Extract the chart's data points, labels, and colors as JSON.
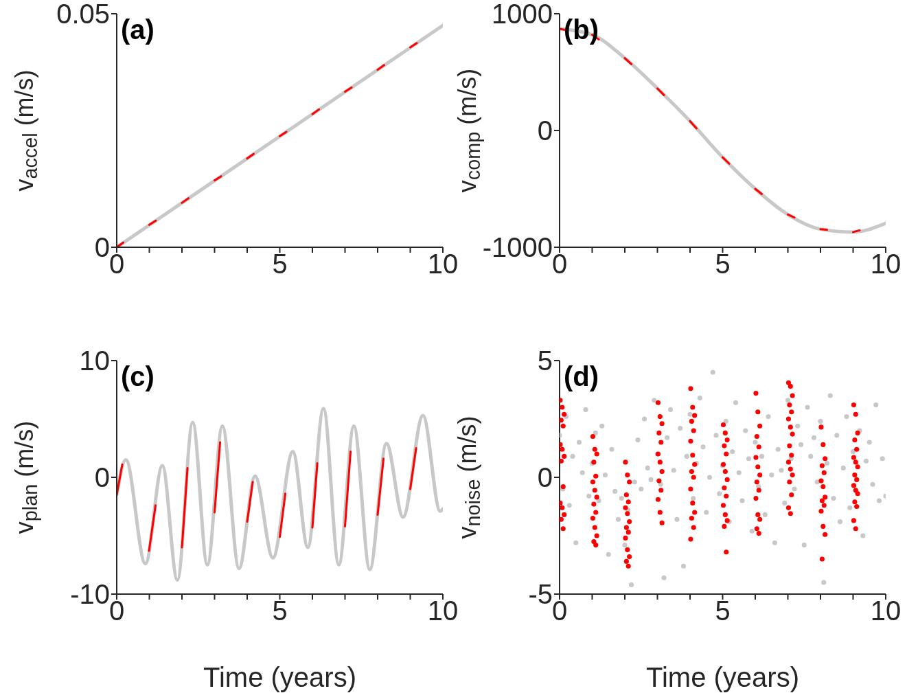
{
  "chart_data": [
    {
      "type": "line",
      "ylabel": "v$_{accel}$ (m/s)",
      "annotations": [
        "(a)"
      ],
      "xlim": [
        0,
        10
      ],
      "xticks": [
        0,
        {
          "value": 1,
          "label": null
        },
        {
          "value": 2,
          "label": null
        },
        {
          "value": 3,
          "label": null
        },
        {
          "value": 4,
          "label": null
        },
        5,
        {
          "value": 6,
          "label": null
        },
        {
          "value": 7,
          "label": null
        },
        {
          "value": 8,
          "label": null
        },
        {
          "value": 9,
          "label": null
        },
        10
      ],
      "ylim": [
        0,
        0.05
      ],
      "yticks": [
        0,
        0.05
      ],
      "series": [
        {
          "color": "#c8c8c8",
          "x": [
            0,
            10
          ],
          "values": [
            0,
            0.0475
          ]
        },
        {
          "color": "#ff0000",
          "x": [
            0,
            0.2,
            0.6,
            1,
            1.2,
            1.6,
            2,
            2.2,
            2.6,
            3,
            3.2,
            3.6,
            4,
            4.2,
            4.6,
            5,
            5.2,
            5.6,
            6,
            6.2,
            6.6,
            7,
            7.2,
            7.6,
            8,
            8.2,
            8.6,
            9,
            9.2
          ],
          "values": [
            0,
            0.001,
            null,
            0.0048,
            0.0057,
            null,
            0.0095,
            0.0105,
            null,
            0.0143,
            0.0152,
            null,
            0.019,
            0.02,
            null,
            0.0238,
            0.0247,
            null,
            0.0285,
            0.0295,
            null,
            0.0333,
            0.0342,
            null,
            0.038,
            0.039,
            null,
            0.0428,
            0.0437
          ]
        }
      ]
    },
    {
      "type": "line",
      "ylabel": "v$_{comp}$ (m/s)",
      "annotations": [
        "(b)"
      ],
      "xlim": [
        0,
        10
      ],
      "xticks": [
        0,
        {
          "value": 1,
          "label": null
        },
        {
          "value": 2,
          "label": null
        },
        {
          "value": 3,
          "label": null
        },
        {
          "value": 4,
          "label": null
        },
        5,
        {
          "value": 6,
          "label": null
        },
        {
          "value": 7,
          "label": null
        },
        {
          "value": 8,
          "label": null
        },
        {
          "value": 9,
          "label": null
        },
        10
      ],
      "ylim": [
        -1000,
        1000
      ],
      "yticks": [
        -1000,
        0,
        1000
      ],
      "series": [
        {
          "color": "#c8c8c8",
          "x": [
            0,
            1,
            2,
            3,
            4,
            5,
            6,
            7,
            8,
            9,
            10
          ],
          "values": [
            870,
            820,
            620,
            360,
            80,
            -230,
            -500,
            -720,
            -845,
            -870,
            -795
          ]
        },
        {
          "color": "#ff0000",
          "x": [
            0,
            0.2,
            0.6,
            1,
            1.2,
            1.6,
            2,
            2.2,
            2.6,
            3,
            3.2,
            3.6,
            4,
            4.2,
            4.6,
            5,
            5.2,
            5.6,
            6,
            6.2,
            6.6,
            7,
            7.2,
            7.6,
            8,
            8.2,
            8.6,
            9,
            9.2
          ],
          "values": [
            870,
            860,
            null,
            820,
            780,
            null,
            620,
            568,
            null,
            360,
            304,
            null,
            80,
            18,
            null,
            -230,
            -284,
            null,
            -500,
            -544,
            null,
            -720,
            -745,
            null,
            -845,
            -850,
            null,
            -870,
            -855
          ]
        }
      ]
    },
    {
      "type": "line",
      "xlabel": "Time (years)",
      "ylabel": "v$_{plan}$ (m/s)",
      "annotations": [
        "(c)"
      ],
      "xlim": [
        0,
        10
      ],
      "xticks": [
        0,
        {
          "value": 1,
          "label": null
        },
        {
          "value": 2,
          "label": null
        },
        {
          "value": 3,
          "label": null
        },
        {
          "value": 4,
          "label": null
        },
        5,
        {
          "value": 6,
          "label": null
        },
        {
          "value": 7,
          "label": null
        },
        {
          "value": 8,
          "label": null
        },
        {
          "value": 9,
          "label": null
        },
        10
      ],
      "ylim": [
        -10,
        10
      ],
      "yticks": [
        -10,
        0,
        10
      ],
      "series": [
        {
          "color": "#c8c8c8",
          "x": [
            0,
            0.28,
            0.88,
            1.4,
            1.86,
            2.33,
            2.78,
            3.24,
            3.75,
            4.24,
            4.79,
            5.4,
            5.86,
            6.34,
            6.81,
            7.27,
            7.76,
            8.27,
            8.78,
            9.39,
            9.92,
            10
          ],
          "values": [
            -1.5,
            1.5,
            -7.4,
            1.0,
            -8.8,
            4.7,
            -7.5,
            4.4,
            -7.8,
            0.1,
            -6.9,
            2.2,
            -6.0,
            5.9,
            -7.5,
            4.4,
            -7.9,
            2.9,
            -3.4,
            5.3,
            -2.9,
            -2.7
          ]
        },
        {
          "color": "#ff0000",
          "x": [
            0,
            0.17,
            0.5,
            0.99,
            1.19,
            1.5,
            2.0,
            2.17,
            2.5,
            3.0,
            3.17,
            3.5,
            4.0,
            4.17,
            4.5,
            5.0,
            5.17,
            5.5,
            6.0,
            6.15,
            6.5,
            7.0,
            7.17,
            7.5,
            8.0,
            8.18,
            8.5,
            9.0,
            9.18
          ],
          "values": [
            -1.5,
            1.1,
            null,
            -6.3,
            -2.4,
            null,
            -6.0,
            0.8,
            null,
            -3.0,
            3.0,
            null,
            -3.8,
            -0.4,
            null,
            -5.1,
            -1.4,
            null,
            -4.3,
            1.2,
            null,
            -4.2,
            2.2,
            null,
            -3.2,
            1.6,
            null,
            -1.0,
            2.5
          ]
        }
      ]
    },
    {
      "type": "scatter",
      "xlabel": "Time (years)",
      "ylabel": "v$_{noise}$ (m/s)",
      "annotations": [
        "(d)"
      ],
      "xlim": [
        0,
        10
      ],
      "xticks": [
        0,
        {
          "value": 1,
          "label": null
        },
        {
          "value": 2,
          "label": null
        },
        {
          "value": 3,
          "label": null
        },
        {
          "value": 4,
          "label": null
        },
        5,
        {
          "value": 6,
          "label": null
        },
        {
          "value": 7,
          "label": null
        },
        {
          "value": 8,
          "label": null
        },
        {
          "value": 9,
          "label": null
        },
        10
      ],
      "ylim": [
        -5,
        5
      ],
      "yticks": [
        -5,
        0,
        5
      ],
      "series": [
        {
          "color": "#c8c8c8",
          "x": [
            0,
            0.1,
            0.2,
            0.3,
            0.4,
            0.5,
            0.6,
            0.7,
            0.8,
            0.9,
            1.0,
            1.1,
            1.2,
            1.3,
            1.4,
            1.5,
            1.6,
            1.7,
            1.8,
            1.9,
            2.0,
            2.1,
            2.2,
            2.3,
            2.4,
            2.5,
            2.6,
            2.7,
            2.8,
            2.9,
            3.0,
            3.1,
            3.2,
            3.3,
            3.4,
            3.5,
            3.6,
            3.7,
            3.8,
            3.9,
            4.0,
            4.1,
            4.2,
            4.3,
            4.4,
            4.5,
            4.6,
            4.7,
            4.8,
            4.9,
            5.0,
            5.1,
            5.2,
            5.3,
            5.4,
            5.5,
            5.6,
            5.7,
            5.8,
            5.9,
            6.0,
            6.1,
            6.2,
            6.3,
            6.4,
            6.5,
            6.6,
            6.7,
            6.8,
            6.9,
            7.0,
            7.1,
            7.2,
            7.3,
            7.4,
            7.5,
            7.6,
            7.7,
            7.8,
            7.9,
            8.0,
            8.1,
            8.2,
            8.3,
            8.4,
            8.5,
            8.6,
            8.7,
            8.8,
            8.9,
            9.0,
            9.1,
            9.2,
            9.3,
            9.4,
            9.5,
            9.6,
            9.7,
            9.8,
            9.9,
            10.0
          ],
          "values": [
            1.8,
            -0.5,
            2.6,
            -1.2,
            0.9,
            -2.8,
            1.5,
            0.2,
            2.9,
            -0.8,
            0.6,
            1.9,
            -1.0,
            2.2,
            0.1,
            -3.3,
            1.2,
            -0.6,
            -1.8,
            -0.9,
            -2.9,
            -1.4,
            -4.6,
            -0.2,
            1.6,
            -0.5,
            2.5,
            0.4,
            -0.1,
            3.3,
            1.0,
            -0.3,
            -4.3,
            1.7,
            2.9,
            0.3,
            -1.8,
            2.1,
            -3.8,
            0.9,
            2.7,
            -0.9,
            0.6,
            3.4,
            1.3,
            -1.5,
            0.0,
            4.5,
            1.8,
            -0.7,
            0.5,
            2.4,
            -1.9,
            1.1,
            3.2,
            0.2,
            -1.0,
            2.0,
            0.8,
            -2.3,
            1.5,
            -0.4,
            0.9,
            -1.6,
            2.6,
            0.1,
            -2.8,
            1.2,
            0.3,
            -1.1,
            3.3,
            0.8,
            -0.5,
            2.2,
            1.4,
            -2.9,
            3.0,
            0.9,
            1.7,
            -0.2,
            2.4,
            -4.5,
            0.6,
            3.5,
            -0.9,
            1.8,
            -1.9,
            0.4,
            2.6,
            -1.3,
            1.1,
            -0.6,
            2.0,
            -2.5,
            0.7,
            1.5,
            -0.3,
            3.1,
            -1.0,
            0.8,
            -0.8
          ]
        },
        {
          "color": "#ff0000",
          "x": [
            0.02,
            0.08,
            0.14,
            0.05,
            0.11,
            0.02,
            0.08,
            0.14,
            0.05,
            0.11,
            0.02,
            0.08,
            0.14,
            0.05,
            0.11,
            1.02,
            1.08,
            1.14,
            1.05,
            1.11,
            1.02,
            1.08,
            1.14,
            1.05,
            1.11,
            1.02,
            1.08,
            1.14,
            1.05,
            1.11,
            2.02,
            2.08,
            2.14,
            2.05,
            2.11,
            2.02,
            2.08,
            2.14,
            2.05,
            2.11,
            2.02,
            2.08,
            2.14,
            2.05,
            2.11,
            3.02,
            3.08,
            3.14,
            3.05,
            3.11,
            3.02,
            3.08,
            3.14,
            3.05,
            3.11,
            3.02,
            3.08,
            3.14,
            4.02,
            4.08,
            4.14,
            4.05,
            4.11,
            4.02,
            4.08,
            4.14,
            4.05,
            4.11,
            4.02,
            4.08,
            4.14,
            4.05,
            4.11,
            4.02,
            5.02,
            5.08,
            5.14,
            5.05,
            5.11,
            5.02,
            5.08,
            5.14,
            5.05,
            5.11,
            5.02,
            5.08,
            5.14,
            5.05,
            5.11,
            6.02,
            6.08,
            6.14,
            6.05,
            6.11,
            6.02,
            6.08,
            6.14,
            6.05,
            6.11,
            6.02,
            6.08,
            6.14,
            6.05,
            6.11,
            7.02,
            7.08,
            7.14,
            7.05,
            7.11,
            7.02,
            7.08,
            7.14,
            7.05,
            7.11,
            7.02,
            7.08,
            7.14,
            7.05,
            7.11,
            7.02,
            7.08,
            8.02,
            8.08,
            8.14,
            8.05,
            8.11,
            8.02,
            8.08,
            8.14,
            8.05,
            8.11,
            8.02,
            8.08,
            8.14,
            8.05,
            9.02,
            9.08,
            9.14,
            9.05,
            9.11,
            9.02,
            9.08,
            9.14,
            9.05,
            9.11,
            9.02,
            9.08,
            9.14,
            9.05,
            9.11,
            9.02,
            9.08
          ],
          "values": [
            3.3,
            3.0,
            2.7,
            2.45,
            2.2,
            1.4,
            1.2,
            0.9,
            0.7,
            -0.4,
            -1.1,
            -1.3,
            -1.6,
            -1.8,
            -2.2,
            1.75,
            1.2,
            1.0,
            0.65,
            0.05,
            -0.2,
            -0.55,
            -0.85,
            -1.15,
            -1.5,
            -1.75,
            -2.15,
            -2.5,
            -2.75,
            -2.9,
            0.65,
            0.1,
            -0.2,
            -0.75,
            -1.05,
            -1.3,
            -1.55,
            -1.9,
            -2.15,
            -2.35,
            -2.6,
            -3.1,
            -3.4,
            -3.6,
            -3.8,
            3.2,
            2.6,
            2.3,
            1.9,
            1.5,
            1.0,
            0.65,
            0.25,
            -0.15,
            -0.55,
            -0.95,
            -1.5,
            -1.95,
            3.8,
            3.0,
            2.65,
            2.4,
            2.0,
            1.55,
            0.95,
            0.55,
            0.25,
            0.0,
            -0.5,
            -1.1,
            -1.5,
            -1.75,
            -2.15,
            -2.65,
            2.25,
            1.9,
            1.6,
            1.35,
            1.0,
            0.55,
            0.25,
            -0.1,
            -0.45,
            -0.8,
            -1.2,
            -1.6,
            -1.85,
            -2.1,
            -3.2,
            3.6,
            2.8,
            2.2,
            1.75,
            1.3,
            0.85,
            0.45,
            0.1,
            -0.2,
            -0.55,
            -0.9,
            -1.6,
            -1.8,
            -2.2,
            -2.4,
            4.05,
            3.9,
            3.5,
            3.1,
            2.8,
            2.5,
            2.15,
            1.85,
            1.35,
            0.95,
            0.65,
            0.35,
            0.1,
            -0.2,
            -0.75,
            -1.3,
            -1.55,
            2.15,
            1.4,
            0.8,
            0.5,
            0.2,
            -0.15,
            -0.4,
            -0.85,
            -1.0,
            -1.2,
            -1.45,
            -2.1,
            -2.45,
            -3.5,
            3.1,
            2.7,
            1.9,
            1.6,
            1.2,
            0.85,
            0.65,
            0.45,
            0.1,
            -0.1,
            -0.35,
            -0.55,
            -0.7,
            -1.05,
            -1.25,
            -1.85,
            -2.2
          ]
        }
      ]
    }
  ]
}
